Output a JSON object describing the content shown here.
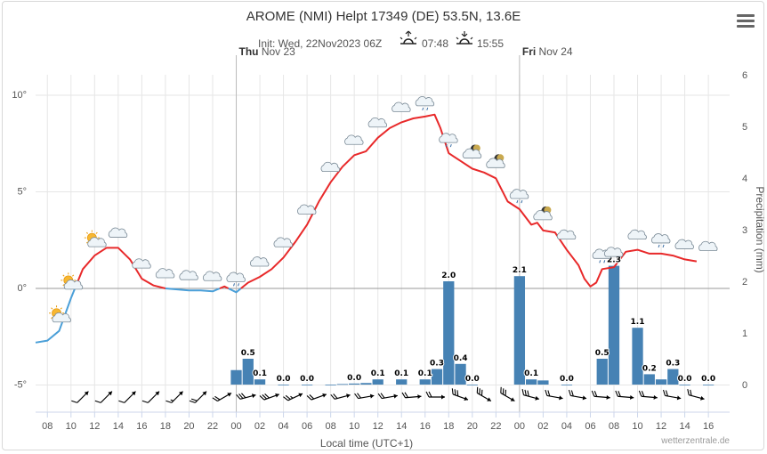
{
  "title": "AROME (NMI) Helpt 17349 (DE) 53.5N, 13.6E",
  "subtitle": {
    "init": "Init: Wed, 22Nov2023 06Z",
    "sunrise": "07:48",
    "sunset": "15:55",
    "sunrise_icon": "sunrise-icon",
    "sunset_icon": "sunset-icon"
  },
  "menu_icon": "hamburger-menu-icon",
  "day_labels": [
    {
      "day": "Thu",
      "date": "Nov 23",
      "at_hour": 24
    },
    {
      "day": "Fri",
      "date": "Nov 24",
      "at_hour": 48
    }
  ],
  "watermark": "wetterzentrale.de",
  "colors": {
    "temp_above_zero": "#e8292a",
    "temp_below_zero": "#4a9fd8",
    "precip_bar": "#4682b4",
    "zero_line": "#999999",
    "grid": "#e6e6e6"
  },
  "chart_data": {
    "type": "line+bar",
    "xlabel": "Local time (UTC+1)",
    "x_ticks": [
      "08",
      "10",
      "12",
      "14",
      "16",
      "18",
      "20",
      "22",
      "00",
      "02",
      "04",
      "06",
      "08",
      "10",
      "12",
      "14",
      "16",
      "18",
      "20",
      "22",
      "00",
      "02",
      "04",
      "06",
      "08",
      "10",
      "12",
      "14",
      "16"
    ],
    "x_tick_hours": [
      8,
      10,
      12,
      14,
      16,
      18,
      20,
      22,
      24,
      26,
      28,
      30,
      32,
      34,
      36,
      38,
      40,
      42,
      44,
      46,
      48,
      50,
      52,
      54,
      56,
      58,
      60,
      62,
      64
    ],
    "x_range_hours": [
      7,
      65.8
    ],
    "y_left": {
      "ticks": [
        "10°",
        "5°",
        "0°",
        "-5°"
      ],
      "values": [
        10,
        5,
        0,
        -5
      ],
      "range": [
        -5.8,
        10.9
      ]
    },
    "y_right": {
      "label": "Precipitation (mm)",
      "ticks": [
        "0",
        "1",
        "2",
        "3",
        "4",
        "5",
        "6"
      ],
      "values": [
        0,
        1,
        2,
        3,
        4,
        5,
        6
      ],
      "range": [
        0,
        6
      ]
    },
    "temperature": {
      "name": "",
      "points": [
        [
          7,
          -2.8
        ],
        [
          8,
          -2.7
        ],
        [
          9,
          -2.2
        ],
        [
          10,
          -0.5
        ],
        [
          11,
          1.0
        ],
        [
          12,
          1.7
        ],
        [
          13,
          2.1
        ],
        [
          14,
          2.1
        ],
        [
          15,
          1.5
        ],
        [
          16,
          0.5
        ],
        [
          17,
          0.15
        ],
        [
          18,
          0.0
        ],
        [
          19,
          -0.05
        ],
        [
          20,
          -0.1
        ],
        [
          21,
          -0.1
        ],
        [
          22,
          -0.15
        ],
        [
          23,
          0.1
        ],
        [
          24,
          -0.2
        ],
        [
          25,
          0.3
        ],
        [
          26,
          0.6
        ],
        [
          27,
          1.0
        ],
        [
          28,
          1.6
        ],
        [
          29,
          2.4
        ],
        [
          30,
          3.3
        ],
        [
          31,
          4.5
        ],
        [
          32,
          5.5
        ],
        [
          33,
          6.3
        ],
        [
          34,
          6.9
        ],
        [
          35,
          7.1
        ],
        [
          36,
          7.8
        ],
        [
          37,
          8.3
        ],
        [
          38,
          8.6
        ],
        [
          39,
          8.8
        ],
        [
          40,
          8.9
        ],
        [
          40.8,
          9.0
        ],
        [
          41.3,
          8.3
        ],
        [
          42,
          7.0
        ],
        [
          43,
          6.6
        ],
        [
          44,
          6.2
        ],
        [
          45,
          6.0
        ],
        [
          46,
          5.7
        ],
        [
          47,
          4.5
        ],
        [
          48,
          4.1
        ],
        [
          49,
          3.3
        ],
        [
          49.5,
          3.4
        ],
        [
          50,
          3.0
        ],
        [
          51,
          2.9
        ],
        [
          52,
          2.0
        ],
        [
          52.5,
          1.6
        ],
        [
          53,
          1.2
        ],
        [
          53.5,
          0.5
        ],
        [
          54,
          0.1
        ],
        [
          54.5,
          0.3
        ],
        [
          55,
          1.0
        ],
        [
          56,
          1.1
        ],
        [
          57,
          1.9
        ],
        [
          58,
          2.0
        ],
        [
          59,
          1.8
        ],
        [
          60,
          1.8
        ],
        [
          61,
          1.7
        ],
        [
          62,
          1.5
        ],
        [
          63,
          1.4
        ]
      ]
    },
    "precipitation": {
      "name": "",
      "bars": [
        [
          24,
          0.28
        ],
        [
          25,
          0.5
        ],
        [
          26,
          0.1
        ],
        [
          28,
          0.0
        ],
        [
          30,
          0.0
        ],
        [
          32,
          0.0
        ],
        [
          33,
          0.01
        ],
        [
          34,
          0.02
        ],
        [
          35,
          0.03
        ],
        [
          36,
          0.1
        ],
        [
          38,
          0.1
        ],
        [
          40,
          0.1
        ],
        [
          41,
          0.3
        ],
        [
          42,
          2.0
        ],
        [
          43,
          0.4
        ],
        [
          44,
          0.0
        ],
        [
          48,
          2.1
        ],
        [
          49,
          0.1
        ],
        [
          50,
          0.08
        ],
        [
          52,
          0.0
        ],
        [
          55,
          0.5
        ],
        [
          56,
          2.3
        ],
        [
          58,
          1.1
        ],
        [
          59,
          0.2
        ],
        [
          60,
          0.1
        ],
        [
          61,
          0.3
        ],
        [
          62,
          0.0
        ],
        [
          64,
          0.0
        ]
      ],
      "labels": [
        {
          "x": 25,
          "text": "0.5"
        },
        {
          "x": 26,
          "text": "0.1"
        },
        {
          "x": 28,
          "text": "0.0"
        },
        {
          "x": 30,
          "text": "0.0"
        },
        {
          "x": 34,
          "text": "0.0"
        },
        {
          "x": 36,
          "text": "0.1"
        },
        {
          "x": 38,
          "text": "0.1"
        },
        {
          "x": 40,
          "text": "0.1"
        },
        {
          "x": 41,
          "text": "0.3"
        },
        {
          "x": 42,
          "text": "2.0"
        },
        {
          "x": 43,
          "text": "0.4"
        },
        {
          "x": 44,
          "text": "0.0"
        },
        {
          "x": 48,
          "text": "2.1"
        },
        {
          "x": 49,
          "text": "0.1"
        },
        {
          "x": 52,
          "text": "0.0"
        },
        {
          "x": 55,
          "text": "0.5"
        },
        {
          "x": 56,
          "text": "2.3"
        },
        {
          "x": 58,
          "text": "1.1"
        },
        {
          "x": 59,
          "text": "0.2"
        },
        {
          "x": 61,
          "text": "0.3"
        },
        {
          "x": 62,
          "text": "0.0"
        },
        {
          "x": 64,
          "text": "0.0"
        }
      ]
    },
    "weather_icons": [
      {
        "x": 9,
        "icon": "sun-cloud-icon"
      },
      {
        "x": 10,
        "icon": "sun-cloud-icon"
      },
      {
        "x": 12,
        "icon": "sun-cloud-icon"
      },
      {
        "x": 14,
        "icon": "cloud-icon"
      },
      {
        "x": 16,
        "icon": "cloud-icon"
      },
      {
        "x": 18,
        "icon": "cloud-icon"
      },
      {
        "x": 20,
        "icon": "cloud-icon"
      },
      {
        "x": 22,
        "icon": "cloud-icon"
      },
      {
        "x": 24,
        "icon": "cloud-drizzle-icon"
      },
      {
        "x": 26,
        "icon": "cloud-icon"
      },
      {
        "x": 28,
        "icon": "cloud-icon"
      },
      {
        "x": 30,
        "icon": "cloud-icon"
      },
      {
        "x": 32,
        "icon": "cloud-icon"
      },
      {
        "x": 34,
        "icon": "cloud-icon"
      },
      {
        "x": 36,
        "icon": "cloud-icon"
      },
      {
        "x": 38,
        "icon": "cloud-icon"
      },
      {
        "x": 40,
        "icon": "cloud-drizzle-icon"
      },
      {
        "x": 42,
        "icon": "cloud-drizzle-icon"
      },
      {
        "x": 44,
        "icon": "moon-cloud-icon"
      },
      {
        "x": 46,
        "icon": "moon-cloud-icon"
      },
      {
        "x": 48,
        "icon": "cloud-rain-icon"
      },
      {
        "x": 50,
        "icon": "moon-cloud-icon"
      },
      {
        "x": 52,
        "icon": "cloud-icon"
      },
      {
        "x": 55,
        "icon": "cloud-drizzle-icon"
      },
      {
        "x": 56,
        "icon": "cloud-icon"
      },
      {
        "x": 58,
        "icon": "cloud-icon"
      },
      {
        "x": 60,
        "icon": "cloud-drizzle-icon"
      },
      {
        "x": 62,
        "icon": "cloud-icon"
      },
      {
        "x": 64,
        "icon": "cloud-icon"
      }
    ],
    "wind_barbs": [
      {
        "x": 11,
        "dir": 225,
        "barbs": 1
      },
      {
        "x": 13,
        "dir": 225,
        "barbs": 1
      },
      {
        "x": 15,
        "dir": 225,
        "barbs": 1
      },
      {
        "x": 17,
        "dir": 225,
        "barbs": 1
      },
      {
        "x": 19,
        "dir": 225,
        "barbs": 1.5
      },
      {
        "x": 21,
        "dir": 225,
        "barbs": 2
      },
      {
        "x": 23,
        "dir": 240,
        "barbs": 2
      },
      {
        "x": 25,
        "dir": 255,
        "barbs": 3
      },
      {
        "x": 27,
        "dir": 250,
        "barbs": 3
      },
      {
        "x": 29,
        "dir": 245,
        "barbs": 2.5
      },
      {
        "x": 31,
        "dir": 250,
        "barbs": 2
      },
      {
        "x": 33,
        "dir": 255,
        "barbs": 2
      },
      {
        "x": 35,
        "dir": 260,
        "barbs": 2
      },
      {
        "x": 37,
        "dir": 260,
        "barbs": 2
      },
      {
        "x": 39,
        "dir": 265,
        "barbs": 2
      },
      {
        "x": 41,
        "dir": 270,
        "barbs": 2
      },
      {
        "x": 43,
        "dir": 290,
        "barbs": 3
      },
      {
        "x": 45,
        "dir": 300,
        "barbs": 3
      },
      {
        "x": 47,
        "dir": 300,
        "barbs": 3
      },
      {
        "x": 49,
        "dir": 285,
        "barbs": 3
      },
      {
        "x": 51,
        "dir": 280,
        "barbs": 2
      },
      {
        "x": 53,
        "dir": 280,
        "barbs": 2
      },
      {
        "x": 55,
        "dir": 275,
        "barbs": 2
      },
      {
        "x": 57,
        "dir": 275,
        "barbs": 2
      },
      {
        "x": 59,
        "dir": 275,
        "barbs": 2
      },
      {
        "x": 61,
        "dir": 280,
        "barbs": 2
      },
      {
        "x": 63,
        "dir": 285,
        "barbs": 2
      }
    ]
  }
}
